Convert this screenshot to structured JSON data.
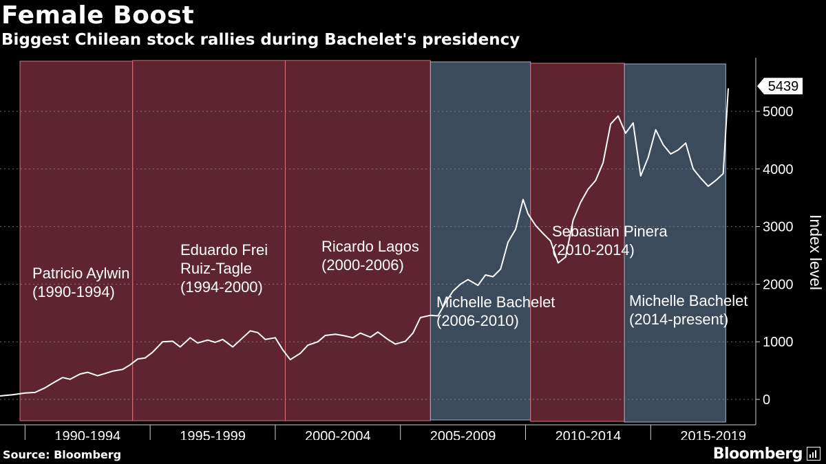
{
  "header": {
    "title": "Female Boost",
    "subtitle": "Biggest Chilean stock rallies during Bachelet's presidency"
  },
  "footer": {
    "source": "Source: Bloomberg",
    "brand": "Bloomberg"
  },
  "colors": {
    "background": "#000000",
    "other_fill": "#5e2530",
    "other_stroke": "#e0707e",
    "bachelet_fill": "#3b4b5c",
    "bachelet_stroke": "#9fb4cc",
    "line": "#ffffff",
    "grid": "#8a8a8a"
  },
  "chart_data": {
    "type": "line",
    "title": "Female Boost",
    "subtitle": "Biggest Chilean stock rallies during Bachelet's presidency",
    "ylabel": "Index level",
    "xlabel": "",
    "ylim": [
      -400,
      5750
    ],
    "xlim": [
      1987.0,
      2017.2
    ],
    "y_ticks": [
      0,
      1000,
      2000,
      3000,
      4000,
      5000
    ],
    "x_categories": [
      "1990-1994",
      "1995-1999",
      "2000-2004",
      "2005-2009",
      "2010-2014",
      "2015-2019"
    ],
    "last_value_label": "5439",
    "periods": [
      {
        "name": "Patricio Aylwin",
        "range": "(1990-1994)",
        "start": 1987.8,
        "end": 1992.3,
        "bachelet": false
      },
      {
        "name": "Eduardo Frei Ruiz-Tagle",
        "name_lines": [
          "Eduardo Frei",
          "Ruiz-Tagle"
        ],
        "range": "(1994-2000)",
        "start": 1992.3,
        "end": 1998.4,
        "bachelet": false
      },
      {
        "name": "Ricardo Lagos",
        "range": "(2000-2006)",
        "start": 1998.4,
        "end": 2004.2,
        "bachelet": false
      },
      {
        "name": "Michelle Bachelet",
        "range": "(2006-2010)",
        "start": 2004.2,
        "end": 2008.2,
        "bachelet": true
      },
      {
        "name": "Sebastian Pinera",
        "range": "(2010-2014)",
        "start": 2008.2,
        "end": 2011.95,
        "bachelet": false
      },
      {
        "name": "Michelle Bachelet",
        "range": "(2014-present)",
        "start": 2011.95,
        "end": 2016.0,
        "bachelet": true
      }
    ],
    "series": [
      {
        "name": "Index level",
        "x": [
          1987.0,
          1987.5,
          1988.0,
          1988.4,
          1988.8,
          1989.1,
          1989.5,
          1989.8,
          1990.2,
          1990.5,
          1990.9,
          1991.2,
          1991.5,
          1991.9,
          1992.2,
          1992.5,
          1992.8,
          1993.1,
          1993.5,
          1993.9,
          1994.2,
          1994.6,
          1994.9,
          1995.3,
          1995.6,
          1995.9,
          1996.3,
          1996.6,
          1997.0,
          1997.3,
          1997.6,
          1998.0,
          1998.3,
          1998.6,
          1999.0,
          1999.3,
          1999.7,
          2000.0,
          2000.4,
          2000.7,
          2001.1,
          2001.4,
          2001.8,
          2002.1,
          2002.5,
          2002.8,
          2003.2,
          2003.5,
          2003.8,
          2004.2,
          2004.5,
          2004.8,
          2005.1,
          2005.4,
          2005.7,
          2006.1,
          2006.4,
          2006.7,
          2007.0,
          2007.3,
          2007.6,
          2007.9,
          2008.1,
          2008.4,
          2008.7,
          2009.0,
          2009.3,
          2009.6,
          2009.9,
          2010.2,
          2010.5,
          2010.8,
          2011.1,
          2011.4,
          2011.7,
          2012.0,
          2012.3,
          2012.6,
          2012.9,
          2013.2,
          2013.5,
          2013.8,
          2014.1,
          2014.4,
          2014.7,
          2015.0,
          2015.3,
          2015.6,
          2015.9,
          2016.1
        ],
        "values": [
          60,
          80,
          110,
          120,
          200,
          280,
          380,
          350,
          440,
          470,
          410,
          450,
          490,
          520,
          600,
          700,
          720,
          820,
          1000,
          1010,
          910,
          1070,
          980,
          1030,
          990,
          1040,
          910,
          1030,
          1190,
          1160,
          1040,
          1070,
          860,
          690,
          800,
          940,
          1000,
          1110,
          1130,
          1110,
          1070,
          1150,
          1080,
          1170,
          1040,
          960,
          1010,
          1150,
          1420,
          1460,
          1450,
          1680,
          1880,
          2000,
          2080,
          1980,
          2160,
          2130,
          2260,
          2730,
          2950,
          3470,
          3220,
          3020,
          2880,
          2750,
          2370,
          2470,
          3110,
          3420,
          3650,
          3800,
          4110,
          4780,
          4920,
          4620,
          4800,
          3880,
          4200,
          4680,
          4420,
          4260,
          4330,
          4450,
          4000,
          3840,
          3700,
          3800,
          3920,
          5400
        ]
      }
    ]
  }
}
